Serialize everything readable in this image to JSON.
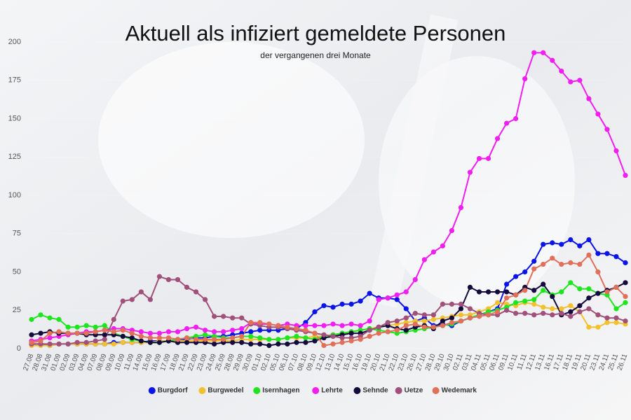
{
  "chart_data": {
    "type": "line",
    "title": "Aktuell als infiziert gemeldete Personen",
    "subtitle": "der vergangenen drei Monate",
    "categories": [
      "27.08",
      "28.08",
      "31.08",
      "01.09",
      "02.09",
      "03.09",
      "04.09",
      "07.09",
      "08.09",
      "09.09",
      "10.09",
      "11.09",
      "14.09",
      "15.09",
      "16.09",
      "17.09",
      "18.09",
      "21.09",
      "22.09",
      "23.09",
      "24.09",
      "25.09",
      "28.09",
      "29.09",
      "30.09",
      "01.10",
      "02.10",
      "05.10",
      "06.10",
      "07.10",
      "08.10",
      "09.10",
      "12.10",
      "13.10",
      "14.10",
      "15.10",
      "16.10",
      "19.10",
      "20.10",
      "21.10",
      "22.10",
      "23.10",
      "26.10",
      "27.10",
      "28.10",
      "29.10",
      "30.10",
      "02.11",
      "03.11",
      "04.11",
      "05.11",
      "06.11",
      "09.11",
      "10.11",
      "11.11",
      "12.11",
      "13.11",
      "16.11",
      "17.11",
      "18.11",
      "19.11",
      "20.11",
      "23.11",
      "24.11",
      "25.11",
      "26.11"
    ],
    "series": [
      {
        "name": "Burgdorf",
        "color": "#0a14e6",
        "values": [
          3,
          3,
          2,
          3,
          3,
          3,
          3,
          3,
          3,
          4,
          4,
          4,
          4,
          5,
          5,
          5,
          6,
          6,
          7,
          7,
          8,
          8,
          9,
          10,
          11,
          12,
          12,
          12,
          13,
          13,
          17,
          24,
          28,
          27,
          29,
          29,
          31,
          36,
          33,
          33,
          32,
          26,
          18,
          20,
          15,
          16,
          15,
          18,
          20,
          22,
          24,
          26,
          42,
          47,
          50,
          57,
          68,
          69,
          68,
          71,
          67,
          71,
          62,
          62,
          60,
          56
        ]
      },
      {
        "name": "Burgwedel",
        "color": "#f2c12e",
        "values": [
          2,
          2,
          2,
          3,
          3,
          3,
          3,
          3,
          3,
          3,
          4,
          4,
          4,
          4,
          5,
          5,
          5,
          5,
          5,
          5,
          5,
          5,
          5,
          6,
          6,
          6,
          6,
          6,
          7,
          7,
          7,
          8,
          8,
          9,
          10,
          11,
          12,
          13,
          14,
          15,
          16,
          17,
          18,
          18,
          19,
          20,
          21,
          22,
          22,
          24,
          26,
          30,
          29,
          28,
          30,
          29,
          27,
          26,
          26,
          28,
          24,
          14,
          14,
          17,
          17,
          16
        ]
      },
      {
        "name": "Isernhagen",
        "color": "#1ee61e",
        "values": [
          19,
          22,
          20,
          19,
          14,
          14,
          15,
          14,
          15,
          10,
          8,
          6,
          5,
          4,
          4,
          5,
          6,
          7,
          8,
          9,
          8,
          7,
          7,
          8,
          8,
          7,
          6,
          6,
          7,
          8,
          7,
          6,
          8,
          9,
          10,
          11,
          12,
          13,
          12,
          11,
          10,
          11,
          12,
          13,
          14,
          15,
          16,
          18,
          20,
          22,
          24,
          25,
          27,
          30,
          31,
          32,
          38,
          35,
          37,
          43,
          39,
          39,
          36,
          35,
          26,
          30
        ]
      },
      {
        "name": "Lehrte",
        "color": "#f01ef0",
        "values": [
          5,
          6,
          7,
          8,
          9,
          10,
          11,
          11,
          12,
          13,
          13,
          12,
          11,
          10,
          10,
          11,
          11,
          13,
          14,
          12,
          11,
          11,
          12,
          13,
          17,
          16,
          16,
          15,
          16,
          15,
          15,
          15,
          15,
          16,
          15,
          16,
          15,
          18,
          32,
          33,
          35,
          37,
          45,
          58,
          63,
          67,
          77,
          92,
          115,
          124,
          124,
          137,
          147,
          150,
          176,
          193,
          193,
          188,
          181,
          174,
          175,
          163,
          153,
          143,
          129,
          113
        ]
      },
      {
        "name": "Sehnde",
        "color": "#140a3c",
        "values": [
          9,
          10,
          11,
          10,
          10,
          10,
          9,
          9,
          9,
          9,
          8,
          7,
          5,
          4,
          4,
          5,
          4,
          4,
          4,
          4,
          3,
          4,
          4,
          4,
          3,
          3,
          2,
          3,
          3,
          4,
          4,
          5,
          7,
          8,
          9,
          10,
          10,
          12,
          14,
          15,
          13,
          12,
          14,
          15,
          13,
          18,
          20,
          26,
          40,
          37,
          37,
          37,
          37,
          35,
          40,
          38,
          42,
          34,
          22,
          24,
          28,
          33,
          36,
          38,
          40,
          43
        ]
      },
      {
        "name": "Uetze",
        "color": "#a0507a",
        "values": [
          3,
          3,
          3,
          3,
          3,
          4,
          4,
          5,
          6,
          19,
          31,
          32,
          37,
          32,
          47,
          45,
          45,
          40,
          37,
          32,
          21,
          21,
          20,
          20,
          16,
          15,
          14,
          14,
          13,
          12,
          11,
          10,
          9,
          8,
          7,
          7,
          8,
          12,
          14,
          17,
          18,
          20,
          23,
          22,
          22,
          29,
          29,
          29,
          26,
          23,
          22,
          22,
          25,
          23,
          23,
          22,
          23,
          22,
          23,
          21,
          24,
          26,
          22,
          20,
          20,
          18
        ]
      },
      {
        "name": "Wedemark",
        "color": "#e0705a",
        "values": [
          4,
          5,
          10,
          11,
          10,
          10,
          10,
          11,
          12,
          11,
          12,
          10,
          8,
          7,
          7,
          7,
          6,
          7,
          6,
          6,
          6,
          6,
          7,
          8,
          17,
          17,
          16,
          15,
          14,
          13,
          12,
          10,
          2,
          3,
          4,
          5,
          6,
          8,
          10,
          11,
          12,
          15,
          16,
          14,
          14,
          15,
          17,
          18,
          20,
          21,
          22,
          24,
          33,
          35,
          38,
          52,
          55,
          59,
          55,
          56,
          55,
          61,
          50,
          37,
          40,
          34
        ]
      }
    ],
    "ylim": [
      0,
      200
    ],
    "yticks": [
      0,
      25,
      50,
      75,
      100,
      125,
      150,
      175,
      200
    ],
    "legend": "bottom"
  }
}
